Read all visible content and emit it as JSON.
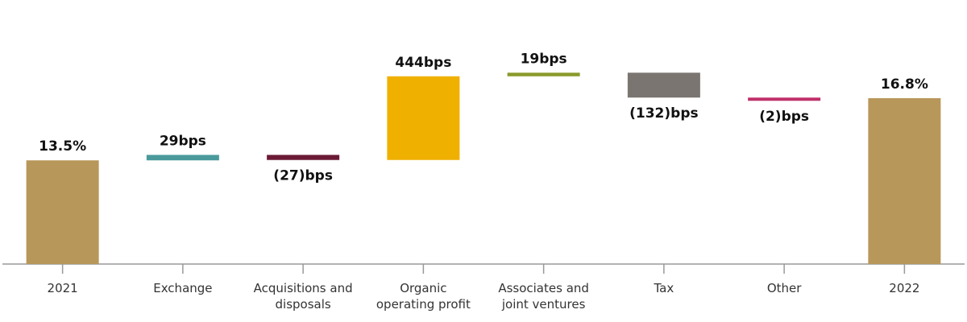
{
  "chart_data": {
    "type": "waterfall",
    "categories": [
      "2021",
      "Exchange",
      "Acquisitions and\ndisposals",
      "Organic\noperating profit",
      "Associates and\njoint ventures",
      "Tax",
      "Other",
      "2022"
    ],
    "values": [
      13.5,
      0.29,
      -0.27,
      4.44,
      0.19,
      -1.32,
      -0.02,
      16.8
    ],
    "value_labels": [
      "13.5%",
      "29bps",
      "(27)bps",
      "444bps",
      "19bps",
      "(132)bps",
      "(2)bps",
      "16.8%"
    ],
    "colors": [
      "#b8975a",
      "#4a9a9c",
      "#6b1a36",
      "#f0b000",
      "#8a9a2a",
      "#7a7570",
      "#c0306a",
      "#b8975a"
    ],
    "ylim": [
      8,
      20
    ]
  }
}
